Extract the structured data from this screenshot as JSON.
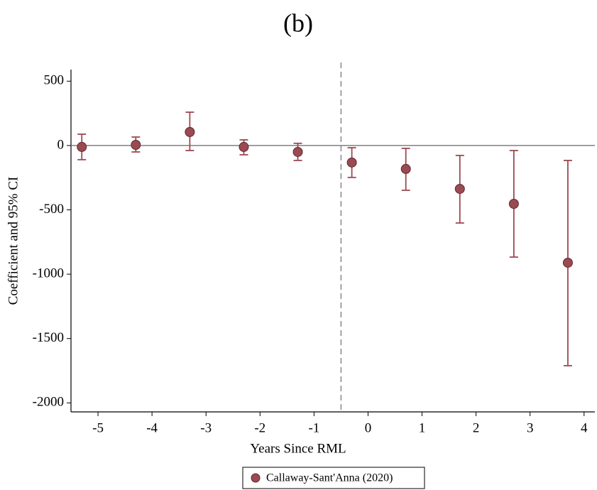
{
  "chart_data": {
    "type": "errorbar",
    "title": "(b)",
    "x_label": "Years Since RML",
    "y_label": "Coefficient and 95% CI",
    "xlim": [
      -5.5,
      4.2
    ],
    "ylim": [
      -2070,
      590
    ],
    "xticks": [
      -5,
      -4,
      -3,
      -2,
      -1,
      0,
      1,
      2,
      3,
      4
    ],
    "yticks": [
      500,
      0,
      -500,
      -1000,
      -1500,
      -2000
    ],
    "hline": 0,
    "vline": -0.5,
    "series": [
      {
        "name": "Callaway-Sant'Anna (2020)",
        "color": "#9b4a52",
        "x": [
          -5.3,
          -4.3,
          -3.3,
          -2.3,
          -1.3,
          -0.3,
          0.7,
          1.7,
          2.7,
          3.7
        ],
        "values": [
          -11,
          5,
          105,
          -11,
          -50,
          -132,
          -182,
          -337,
          -453,
          -911
        ],
        "lower": [
          -110,
          -50,
          -39,
          -72,
          -116,
          -248,
          -348,
          -602,
          -867,
          -1711
        ],
        "upper": [
          88,
          66,
          259,
          44,
          17,
          -17,
          -22,
          -77,
          -39,
          -116
        ]
      }
    ],
    "legend": "bottom"
  }
}
